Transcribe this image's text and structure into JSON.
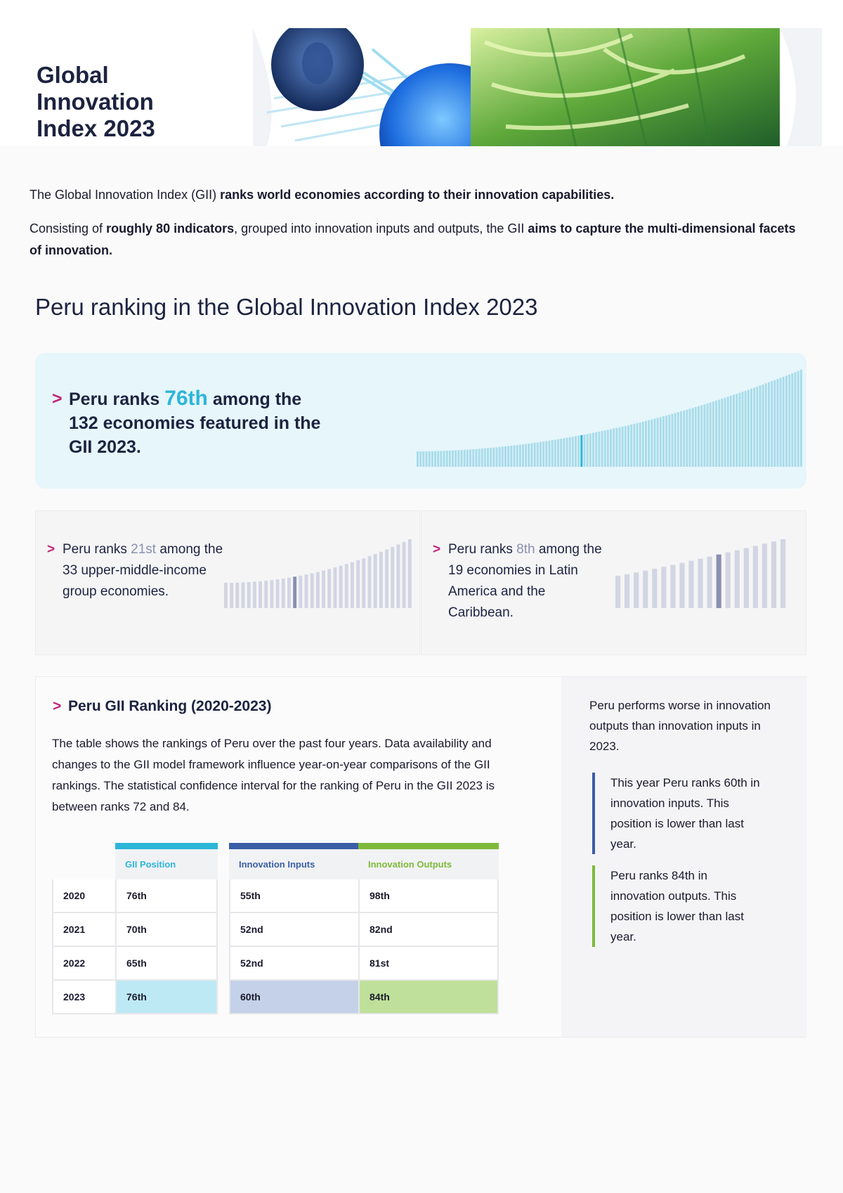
{
  "header": {
    "title_lines": [
      "Global",
      "Innovation",
      "Index 2023"
    ]
  },
  "intro": {
    "p1_plain": "The Global Innovation Index (GII) ",
    "p1_bold": "ranks world economies according to their innovation capabilities.",
    "p2_a": "Consisting of ",
    "p2_b": "roughly 80 indicators",
    "p2_c": ", grouped into innovation inputs and outputs, the GII ",
    "p2_d": "aims to capture the multi-dimensional facets of innovation."
  },
  "section_title": "Peru ranking in the Global Innovation Index 2023",
  "banner": {
    "pre": "Peru ranks ",
    "rank": "76th",
    "post": " among the 132 economies featured in the GII 2023."
  },
  "card_income": {
    "pre": "Peru ranks ",
    "rank": "21st",
    "post": " among the 33 upper-middle-income group economies."
  },
  "card_region": {
    "pre": "Peru ranks ",
    "rank": "8th",
    "post": " among the 19 economies in Latin America and the Caribbean."
  },
  "ranking": {
    "title": "Peru GII Ranking (2020-2023)",
    "description": "The table shows the rankings of Peru over the past four years. Data availability and changes to the GII model framework influence year-on-year comparisons of the GII rankings. The statistical confidence interval for the ranking of Peru in the GII 2023 is between ranks 72 and 84.",
    "columns": {
      "gii": "GII Position",
      "inputs": "Innovation Inputs",
      "outputs": "Innovation Outputs"
    },
    "rows": [
      {
        "year": "2020",
        "gii": "76th",
        "inputs": "55th",
        "outputs": "98th"
      },
      {
        "year": "2021",
        "gii": "70th",
        "inputs": "52nd",
        "outputs": "82nd"
      },
      {
        "year": "2022",
        "gii": "65th",
        "inputs": "52nd",
        "outputs": "81st"
      },
      {
        "year": "2023",
        "gii": "76th",
        "inputs": "60th",
        "outputs": "84th"
      }
    ]
  },
  "side": {
    "lead": "Peru performs worse in innovation outputs than innovation inputs in 2023.",
    "note_inputs": "This year Peru ranks 60th in innovation inputs. This position is lower than last year.",
    "note_outputs": "Peru ranks 84th in innovation outputs. This position is lower than last year."
  },
  "colors": {
    "gii": "#2cb6d8",
    "inputs": "#3a5ea6",
    "outputs": "#7fb939",
    "accent": "#c2247a"
  },
  "bars": {
    "all_economies": {
      "count": 132,
      "highlight_rank": 76
    },
    "income_group": {
      "count": 33,
      "highlight_rank": 21
    },
    "region": {
      "count": 19,
      "highlight_rank": 8
    }
  }
}
